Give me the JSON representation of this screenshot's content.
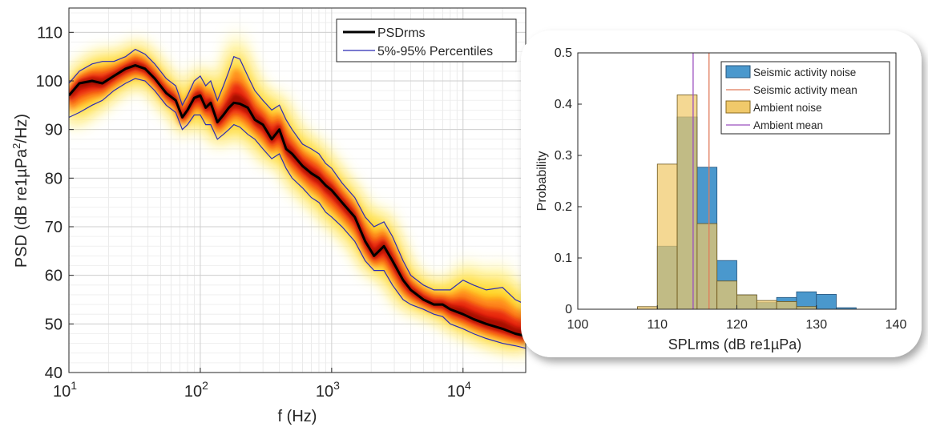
{
  "chart_data": [
    {
      "type": "line",
      "scale_x": "log",
      "xlabel": "f (Hz)",
      "ylabel": "PSD (dB re1µPa²/Hz)",
      "ylabel_main": "PSD (dB re1µPa",
      "ylabel_sup": "2",
      "ylabel_end": "/Hz)",
      "xlim": [
        10,
        30000
      ],
      "ylim": [
        40,
        115
      ],
      "x_ticks": [
        10,
        100,
        1000,
        10000
      ],
      "x_tick_base": "10",
      "x_tick_exponents": [
        "1",
        "2",
        "3",
        "4"
      ],
      "y_ticks": [
        40,
        50,
        60,
        70,
        80,
        90,
        100,
        110
      ],
      "y_tick_labels": [
        "40",
        "50",
        "60",
        "70",
        "80",
        "90",
        "100",
        "110"
      ],
      "grid": true,
      "legend_position": "top-right",
      "heatmap_colormap": "hot (yellow-red density)",
      "x": [
        10,
        12,
        15,
        18,
        22,
        27,
        32,
        38,
        45,
        55,
        65,
        73,
        80,
        90,
        100,
        110,
        120,
        135,
        150,
        165,
        180,
        200,
        230,
        260,
        300,
        350,
        400,
        450,
        500,
        600,
        700,
        800,
        900,
        1000,
        1200,
        1500,
        1800,
        2100,
        2500,
        2900,
        3500,
        4000,
        5000,
        6000,
        7000,
        8000,
        10000,
        12000,
        15000,
        20000,
        25000,
        30000
      ],
      "series": [
        {
          "name": "PSDrms",
          "color": "#000000",
          "values": [
            97,
            99.5,
            100,
            99.5,
            101,
            102.5,
            103.2,
            102.5,
            100.5,
            97.5,
            96,
            92.5,
            94,
            96.5,
            97,
            94.5,
            95.5,
            91.5,
            93,
            94.5,
            95.5,
            95.3,
            94.5,
            92,
            91,
            88,
            90,
            86,
            85,
            82.5,
            81,
            80,
            78.5,
            77.5,
            75,
            72,
            67,
            64,
            66,
            63,
            59,
            57,
            55,
            54,
            54,
            53,
            52,
            51,
            50,
            49,
            48,
            47.5
          ]
        },
        {
          "name": "5%-95% Percentiles",
          "color": "#2b2bb5",
          "upper": [
            99.5,
            102,
            103.5,
            104,
            104,
            105,
            106.5,
            105.5,
            103.5,
            100.5,
            99,
            95,
            97,
            100,
            101,
            99,
            100,
            96,
            99,
            102,
            105,
            104.5,
            101,
            98,
            96,
            94,
            95,
            92,
            90,
            87,
            86,
            85,
            83,
            82,
            79,
            76,
            72,
            70,
            71,
            68,
            63,
            60,
            58,
            57,
            57,
            57,
            59,
            58,
            57,
            57.5,
            55,
            54
          ],
          "lower": [
            92.5,
            93.5,
            95,
            96,
            98,
            99.5,
            100.5,
            100,
            98,
            95,
            93.5,
            90,
            91,
            93,
            93,
            91,
            91,
            88,
            89,
            90,
            91,
            90.5,
            89,
            88,
            86,
            84,
            85,
            82,
            80,
            78,
            76,
            75,
            73,
            72,
            70,
            67,
            63,
            61,
            61,
            58,
            55,
            54,
            53,
            52,
            51.5,
            50,
            49,
            48,
            47,
            46,
            45.5,
            45
          ]
        }
      ]
    },
    {
      "type": "bar",
      "subtype": "histogram",
      "xlabel": "SPLrms (dB re1µPa)",
      "ylabel": "Probability",
      "xlim": [
        100,
        140
      ],
      "ylim": [
        0,
        0.5
      ],
      "x_ticks": [
        100,
        110,
        120,
        130,
        140
      ],
      "x_tick_labels": [
        "100",
        "110",
        "120",
        "130",
        "140"
      ],
      "y_ticks": [
        0,
        0.1,
        0.2,
        0.3,
        0.4,
        0.5
      ],
      "y_tick_labels": [
        "0",
        "0.1",
        "0.2",
        "0.3",
        "0.4",
        "0.5"
      ],
      "grid": false,
      "legend_position": "top-right",
      "bin_edges": [
        107.5,
        110,
        112.5,
        115,
        117.5,
        120,
        122.5,
        125,
        127.5,
        130,
        132.5,
        135
      ],
      "series": [
        {
          "name": "Seismic activity noise",
          "color": "#4a98cd",
          "values": [
            0,
            0.123,
            0.375,
            0.277,
            0.095,
            0.028,
            0.013,
            0.023,
            0.034,
            0.029,
            0.003
          ]
        },
        {
          "name": "Ambient noise",
          "color": "#f0c96a",
          "values": [
            0.005,
            0.283,
            0.418,
            0.167,
            0.055,
            0.028,
            0.017,
            0.015,
            0.005,
            0,
            0
          ]
        }
      ],
      "reference_lines": [
        {
          "name": "Seismic activity mean",
          "color": "#e07a5a",
          "x": 116.5
        },
        {
          "name": "Ambient mean",
          "color": "#9b4fbf",
          "x": 114.5
        }
      ]
    }
  ]
}
